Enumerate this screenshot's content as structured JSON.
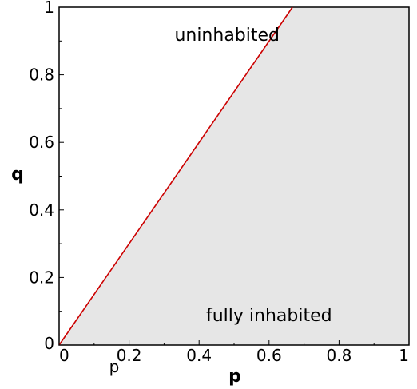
{
  "chart_data": {
    "type": "area",
    "xlabel": "p",
    "ylabel": "q",
    "extra_label": "p",
    "xlim": [
      0,
      1
    ],
    "ylim": [
      0,
      1
    ],
    "xticks": [
      "0",
      "0.2",
      "0.4",
      "0.6",
      "0.8",
      "1"
    ],
    "yticks": [
      "0",
      "0.2",
      "0.4",
      "0.6",
      "0.8",
      "1"
    ],
    "grid": false,
    "boundary_line": {
      "x": [
        0,
        0.667
      ],
      "y": [
        0,
        1
      ],
      "color": "#cc0000"
    },
    "regions": [
      {
        "label": "uninhabited",
        "fill": "#ffffff",
        "label_at": {
          "x": 0.48,
          "y": 0.92
        }
      },
      {
        "label": "fully inhabited",
        "fill": "#e6e6e6",
        "label_at": {
          "x": 0.6,
          "y": 0.09
        }
      }
    ],
    "colors": {
      "shaded": "#e6e6e6",
      "line": "#cc0000",
      "axis": "#000000"
    }
  }
}
